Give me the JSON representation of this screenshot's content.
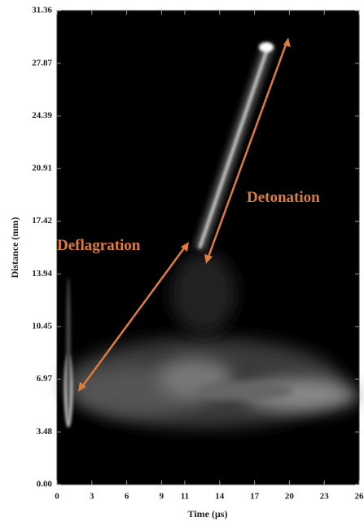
{
  "chart_data": {
    "type": "image",
    "xlabel": "Time (μs)",
    "ylabel": "Distance (mm)",
    "xlim": [
      0,
      26
    ],
    "ylim": [
      0,
      31.36
    ],
    "xticks": [
      0,
      3,
      6,
      9,
      11,
      14,
      17,
      20,
      23,
      26
    ],
    "yticks": [
      {
        "value": 0,
        "label": "0.00"
      },
      3.48,
      6.97,
      10.45,
      13.94,
      17.42,
      20.91,
      24.39,
      27.87,
      31.36
    ],
    "annotations": [
      "Deflagration",
      "Detonation"
    ],
    "annotation_color": "#de7b3f"
  }
}
